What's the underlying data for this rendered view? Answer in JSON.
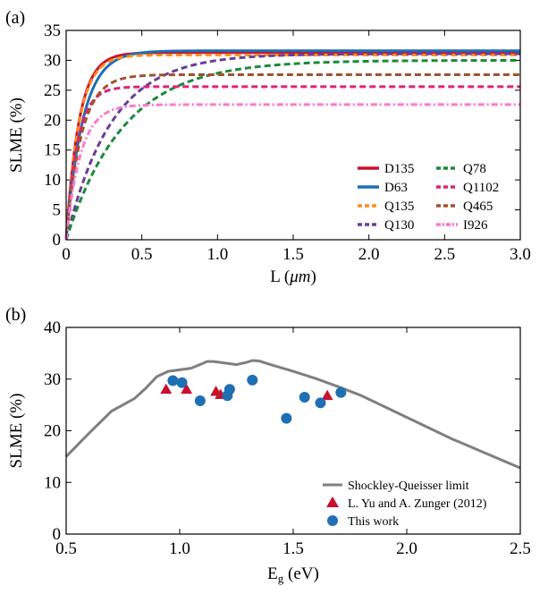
{
  "chart_data": [
    {
      "panel_label": "(a)",
      "type": "line",
      "xlabel_main": "L (",
      "xlabel_unit": "μm",
      "xlabel_close": ")",
      "ylabel": "SLME (%)",
      "xlim": [
        0,
        3.0
      ],
      "ylim": [
        0,
        35
      ],
      "x_ticks": [
        "0",
        "0.5",
        "1.0",
        "1.5",
        "2.0",
        "2.5",
        "3.0"
      ],
      "y_ticks": [
        "0",
        "5",
        "10",
        "15",
        "20",
        "25",
        "30",
        "35"
      ],
      "legend_position": "bottom-right",
      "series": [
        {
          "name": "D135",
          "color": "#c8102e",
          "dash": "solid",
          "sat": 31.3,
          "len": 0.085,
          "x": [
            0,
            0.05,
            0.1,
            0.2,
            0.3,
            0.5,
            1.0,
            1.5,
            2.0,
            3.0
          ]
        },
        {
          "name": "D63",
          "color": "#1f6fb4",
          "dash": "solid",
          "sat": 31.6,
          "len": 0.11,
          "x": [
            0,
            0.05,
            0.1,
            0.2,
            0.3,
            0.5,
            1.0,
            1.5,
            2.0,
            3.0
          ]
        },
        {
          "name": "Q135",
          "color": "#ff8c1a",
          "dash": "dashed",
          "sat": 30.9,
          "len": 0.085,
          "x": [
            0,
            0.05,
            0.1,
            0.2,
            0.3,
            0.5,
            1.0,
            1.5,
            2.0,
            3.0
          ]
        },
        {
          "name": "Q130",
          "color": "#6a3d9a",
          "dash": "dashed",
          "sat": 31.1,
          "len": 0.3,
          "x": [
            0,
            0.05,
            0.1,
            0.2,
            0.3,
            0.5,
            0.75,
            1.0,
            1.5,
            2.0,
            3.0
          ]
        },
        {
          "name": "Q78",
          "color": "#1a8a3a",
          "dash": "dashed",
          "sat": 30.0,
          "len": 0.38,
          "x": [
            0,
            0.05,
            0.1,
            0.2,
            0.3,
            0.5,
            0.75,
            1.0,
            1.5,
            2.0,
            3.0
          ]
        },
        {
          "name": "Q1102",
          "color": "#e0207a",
          "dash": "dashed",
          "sat": 25.6,
          "len": 0.075,
          "x": [
            0,
            0.05,
            0.1,
            0.2,
            0.3,
            0.5,
            1.0,
            2.0,
            3.0
          ]
        },
        {
          "name": "Q465",
          "color": "#a0522d",
          "dash": "dashed",
          "sat": 27.6,
          "len": 0.1,
          "x": [
            0,
            0.05,
            0.1,
            0.2,
            0.3,
            0.5,
            1.0,
            2.0,
            3.0
          ]
        },
        {
          "name": "I926",
          "color": "#ff77cc",
          "dash": "dashdot",
          "sat": 22.6,
          "len": 0.095,
          "x": [
            0,
            0.05,
            0.1,
            0.2,
            0.3,
            0.5,
            1.0,
            2.0,
            3.0
          ]
        }
      ]
    },
    {
      "panel_label": "(b)",
      "type": "scatter",
      "xlabel_main": "E",
      "xlabel_sub": "g",
      "xlabel_rest": " (eV)",
      "ylabel": "SLME (%)",
      "xlim": [
        0.5,
        2.5
      ],
      "ylim": [
        0,
        40
      ],
      "x_ticks": [
        "0.5",
        "1.0",
        "1.5",
        "2.0",
        "2.5"
      ],
      "y_ticks": [
        "0",
        "10",
        "20",
        "30",
        "40"
      ],
      "legend_position": "bottom-right",
      "series": [
        {
          "name": "Shockley-Queisser limit",
          "kind": "line",
          "color": "#7f7f7f",
          "x": [
            0.5,
            0.6,
            0.7,
            0.8,
            0.85,
            0.9,
            0.95,
            1.0,
            1.05,
            1.1,
            1.12,
            1.15,
            1.2,
            1.25,
            1.3,
            1.32,
            1.35,
            1.4,
            1.5,
            1.6,
            1.7,
            1.8,
            2.0,
            2.2,
            2.5
          ],
          "y": [
            15.0,
            19.5,
            23.8,
            26.2,
            28.2,
            30.5,
            31.5,
            31.8,
            32.1,
            33.0,
            33.4,
            33.4,
            33.1,
            32.8,
            33.3,
            33.6,
            33.5,
            32.8,
            31.5,
            30.1,
            28.5,
            26.8,
            22.6,
            18.4,
            12.8
          ]
        },
        {
          "name": "L. Yu and A. Zunger (2012)",
          "kind": "triangle",
          "color": "#c8102e",
          "x": [
            0.94,
            1.03,
            1.16,
            1.18,
            1.65
          ],
          "y": [
            28.0,
            28.0,
            27.6,
            27.0,
            26.8
          ]
        },
        {
          "name": "This work",
          "kind": "circle",
          "color": "#1f6fb4",
          "x": [
            0.97,
            1.01,
            1.09,
            1.21,
            1.22,
            1.32,
            1.47,
            1.55,
            1.62,
            1.71
          ],
          "y": [
            29.7,
            29.3,
            25.8,
            26.8,
            28.0,
            29.8,
            22.4,
            26.5,
            25.4,
            27.4
          ]
        }
      ]
    }
  ]
}
